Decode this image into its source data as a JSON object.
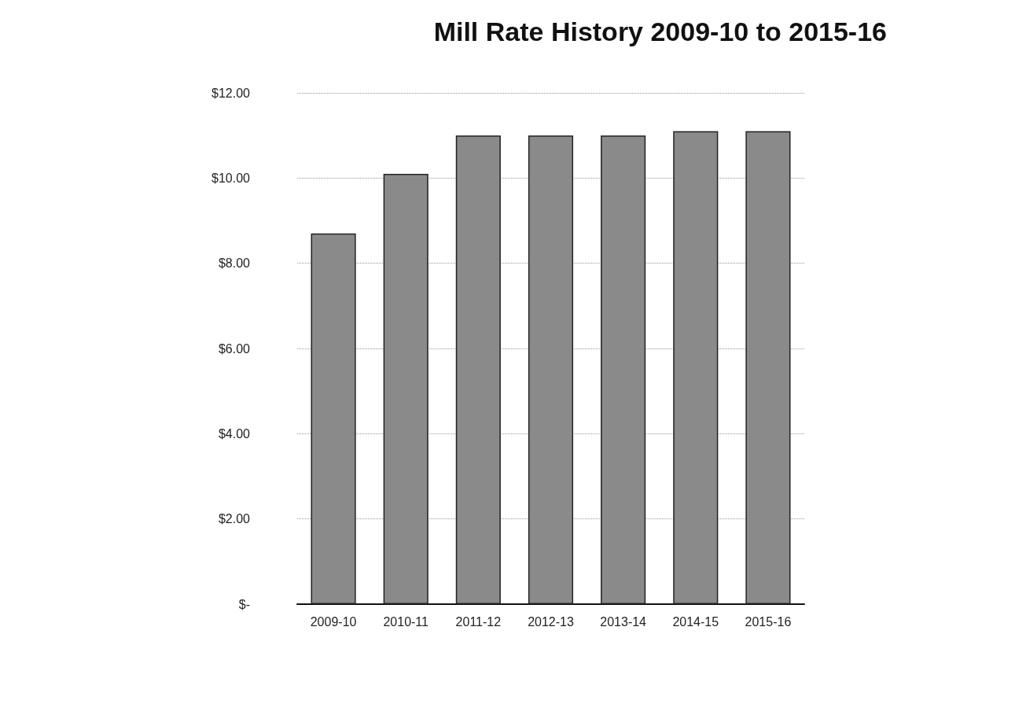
{
  "chart_data": {
    "type": "bar",
    "title": "Mill Rate History 2009-10 to 2015-16",
    "categories": [
      "2009-10",
      "2010-11",
      "2011-12",
      "2012-13",
      "2013-14",
      "2014-15",
      "2015-16"
    ],
    "values": [
      8.7,
      10.1,
      11.0,
      11.0,
      11.0,
      11.1,
      11.1
    ],
    "color": "#8a8a8a",
    "ylim": [
      0,
      12
    ],
    "yticks": [
      {
        "value": 0,
        "label": "$-"
      },
      {
        "value": 2,
        "label": "$2.00"
      },
      {
        "value": 4,
        "label": "$4.00"
      },
      {
        "value": 6,
        "label": "$6.00"
      },
      {
        "value": 8,
        "label": "$8.00"
      },
      {
        "value": 10,
        "label": "$10.00"
      },
      {
        "value": 12,
        "label": "$12.00"
      }
    ],
    "grid": "y"
  }
}
